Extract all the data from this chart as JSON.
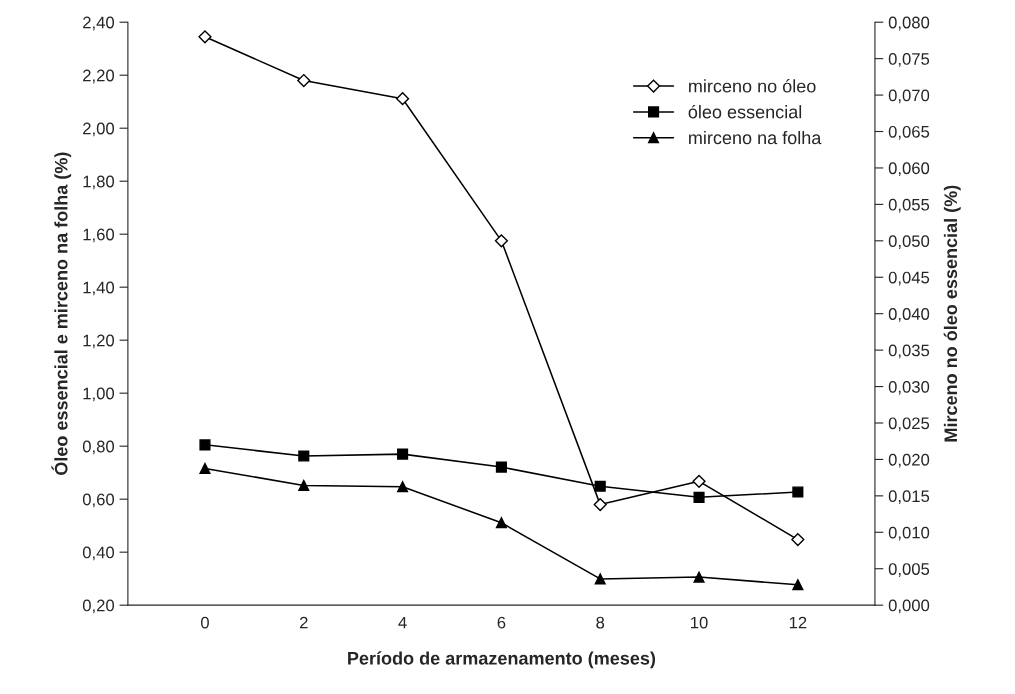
{
  "chart_data": {
    "type": "line",
    "xlabel": "Período de armazenamento (meses)",
    "ylabel": "Óleo essencial e mirceno na folha (%)",
    "y2label": "Mirceno no óleo essencial (%)",
    "categories": [
      "0",
      "2",
      "4",
      "6",
      "8",
      "10",
      "12"
    ],
    "series": [
      {
        "name": "mirceno no óleo",
        "color": "#000000",
        "marker": "diamond",
        "axis": "y2",
        "values": [
          0.078,
          0.072,
          0.0695,
          0.05,
          0.0138,
          0.017,
          0.009
        ]
      },
      {
        "name": "óleo essencial",
        "color": "#000000",
        "marker": "square",
        "values": [
          0.805,
          0.763,
          0.77,
          0.721,
          0.649,
          0.607,
          0.627
        ]
      },
      {
        "name": "mirceno na folha",
        "color": "#000000",
        "marker": "triangle",
        "values": [
          0.716,
          0.652,
          0.647,
          0.511,
          0.299,
          0.306,
          0.277
        ]
      }
    ],
    "ylim": [
      0.2,
      2.4
    ],
    "yticks": [
      {
        "value": 0.2,
        "label": "0,20"
      },
      {
        "value": 0.4,
        "label": "0,40"
      },
      {
        "value": 0.6,
        "label": "0,60"
      },
      {
        "value": 0.8,
        "label": "0,80"
      },
      {
        "value": 1.0,
        "label": "1,00"
      },
      {
        "value": 1.2,
        "label": "1,20"
      },
      {
        "value": 1.4,
        "label": "1,40"
      },
      {
        "value": 1.6,
        "label": "1,60"
      },
      {
        "value": 1.8,
        "label": "1,80"
      },
      {
        "value": 2.0,
        "label": "2,00"
      },
      {
        "value": 2.2,
        "label": "2,20"
      },
      {
        "value": 2.4,
        "label": "2,40"
      }
    ],
    "y2lim": [
      0,
      0.08
    ],
    "y2ticks": [
      {
        "value": 0,
        "label": "0,000"
      },
      {
        "value": 0.005,
        "label": "0,005"
      },
      {
        "value": 0.01,
        "label": "0,010"
      },
      {
        "value": 0.015,
        "label": "0,015"
      },
      {
        "value": 0.02,
        "label": "0,020"
      },
      {
        "value": 0.025,
        "label": "0,025"
      },
      {
        "value": 0.03,
        "label": "0,030"
      },
      {
        "value": 0.035,
        "label": "0,035"
      },
      {
        "value": 0.04,
        "label": "0,040"
      },
      {
        "value": 0.045,
        "label": "0,045"
      },
      {
        "value": 0.05,
        "label": "0,050"
      },
      {
        "value": 0.055,
        "label": "0,055"
      },
      {
        "value": 0.06,
        "label": "0,060"
      },
      {
        "value": 0.065,
        "label": "0,065"
      },
      {
        "value": 0.07,
        "label": "0,070"
      },
      {
        "value": 0.075,
        "label": "0,075"
      },
      {
        "value": 0.08,
        "label": "0,080"
      }
    ],
    "grid": false,
    "legend": "top right",
    "line_style": "solid"
  }
}
